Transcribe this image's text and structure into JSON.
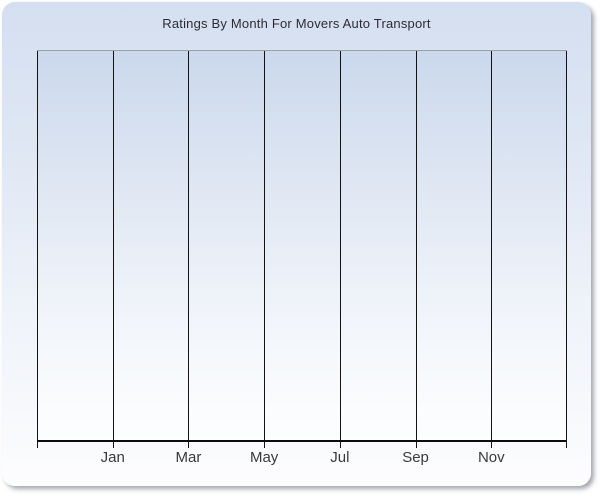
{
  "chart": {
    "title": "Ratings By Month For Movers Auto Transport"
  },
  "chart_data": {
    "type": "line",
    "title": "Ratings By Month For Movers Auto Transport",
    "xlabel": "",
    "ylabel": "",
    "x_tick_labels": [
      "Jan",
      "Mar",
      "May",
      "Jul",
      "Sep",
      "Nov"
    ],
    "y_tick_labels": [],
    "series": [],
    "gridline_count": 8,
    "grid": "vertical-gridlines-only",
    "legend": "none",
    "notes": "empty plot area - no data points rendered"
  },
  "colors": {
    "panel_gradient_top": "#d4dff0",
    "panel_gradient_bottom": "#fdfdfe",
    "plot_gradient_top": "#cbd8ec",
    "plot_gradient_bottom": "#fdfefe",
    "gridline": "#131313",
    "axis_line": "#0d0d0d",
    "plot_top_border": "#99a1ab",
    "title_text": "#2c2c34",
    "label_text": "#3a3a3a",
    "shadow": "#737882"
  }
}
